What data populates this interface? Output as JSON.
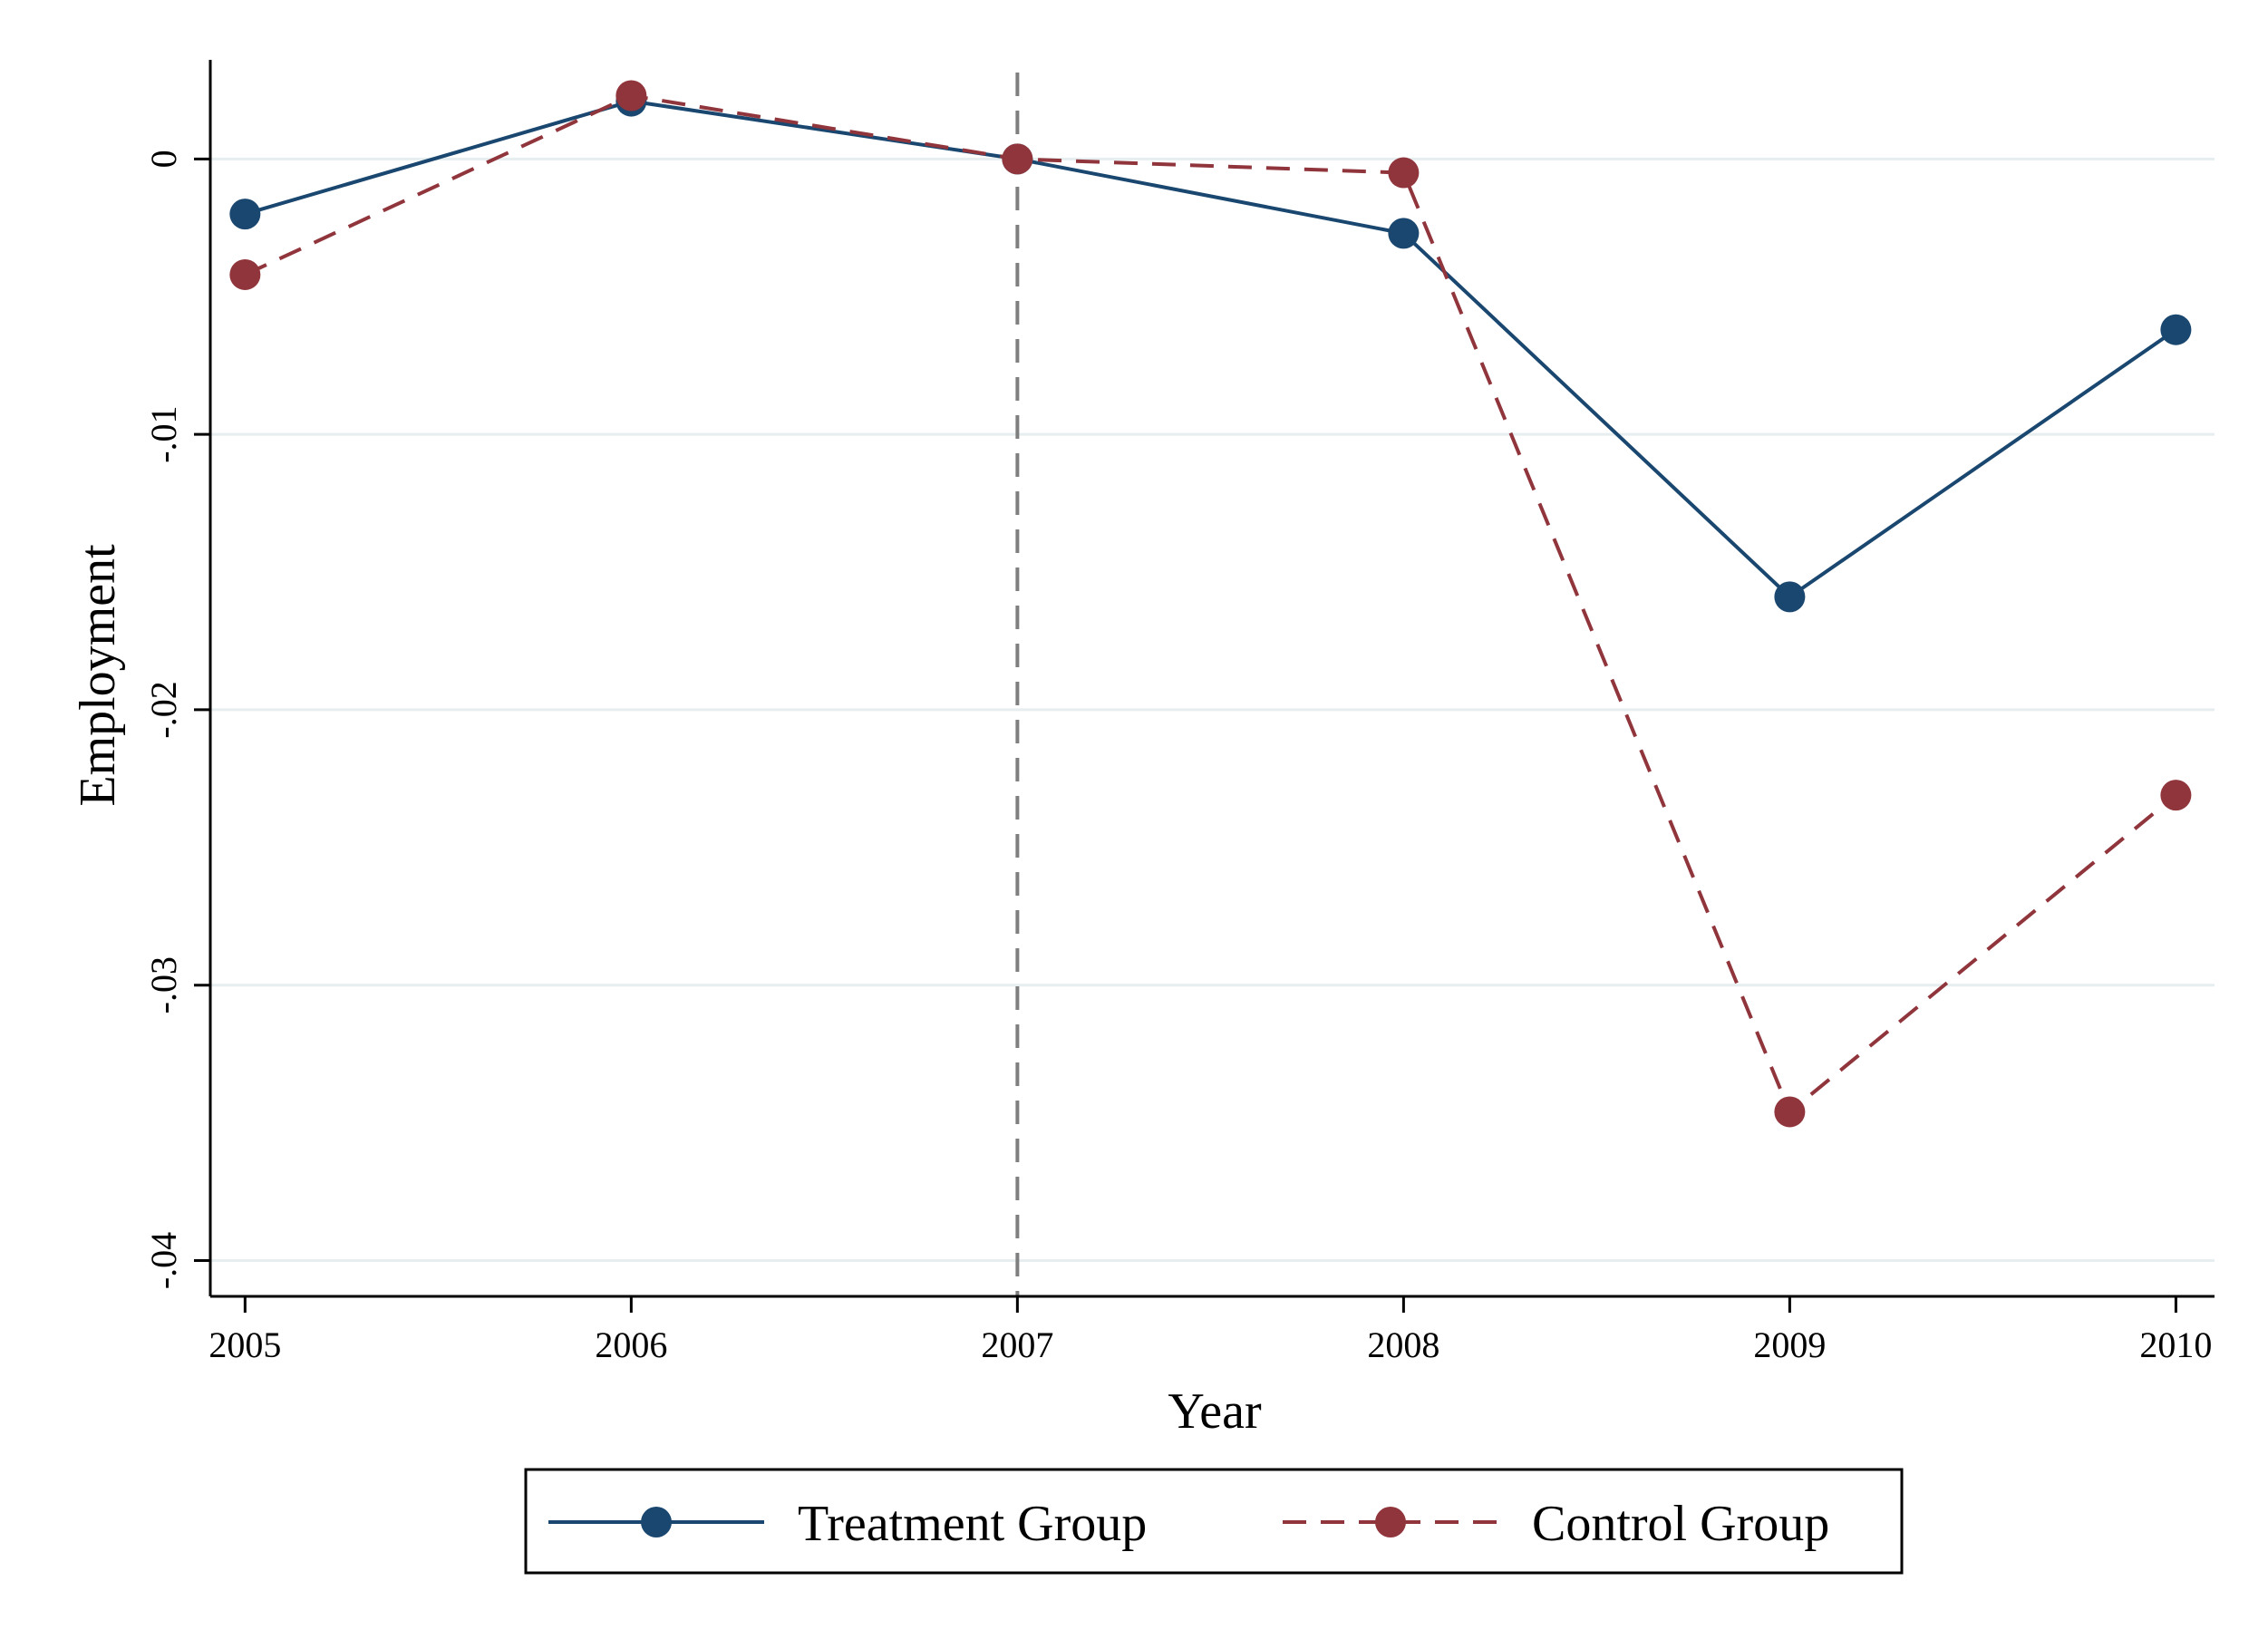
{
  "chart_data": {
    "type": "line",
    "title": "",
    "xlabel": "Year",
    "ylabel": "Employment",
    "x": [
      2005,
      2006,
      2007,
      2008,
      2009,
      2010
    ],
    "x_tick_labels": [
      "2005",
      "2006",
      "2007",
      "2008",
      "2009",
      "2010"
    ],
    "y_ticks": [
      0,
      -0.01,
      -0.02,
      -0.03,
      -0.04
    ],
    "y_tick_labels": [
      "0",
      "-.01",
      "-.02",
      "-.03",
      "-.04"
    ],
    "xlim": [
      2004.91,
      2010.1
    ],
    "ylim": [
      -0.0413,
      0.0036
    ],
    "grid": true,
    "reference_line": {
      "x": 2007,
      "style": "dashed",
      "color": "#7f7f7f"
    },
    "legend_position": "bottom",
    "series": [
      {
        "name": "Treatment Group",
        "values": [
          -0.002,
          0.0021,
          0.0,
          -0.0027,
          -0.0159,
          -0.0062
        ],
        "color": "#1a476f",
        "line_style": "solid",
        "marker": "circle"
      },
      {
        "name": "Control Group",
        "values": [
          -0.0042,
          0.0023,
          0.0,
          -0.0005,
          -0.0346,
          -0.0231
        ],
        "color": "#90353b",
        "line_style": "dashed",
        "marker": "circle"
      }
    ]
  }
}
